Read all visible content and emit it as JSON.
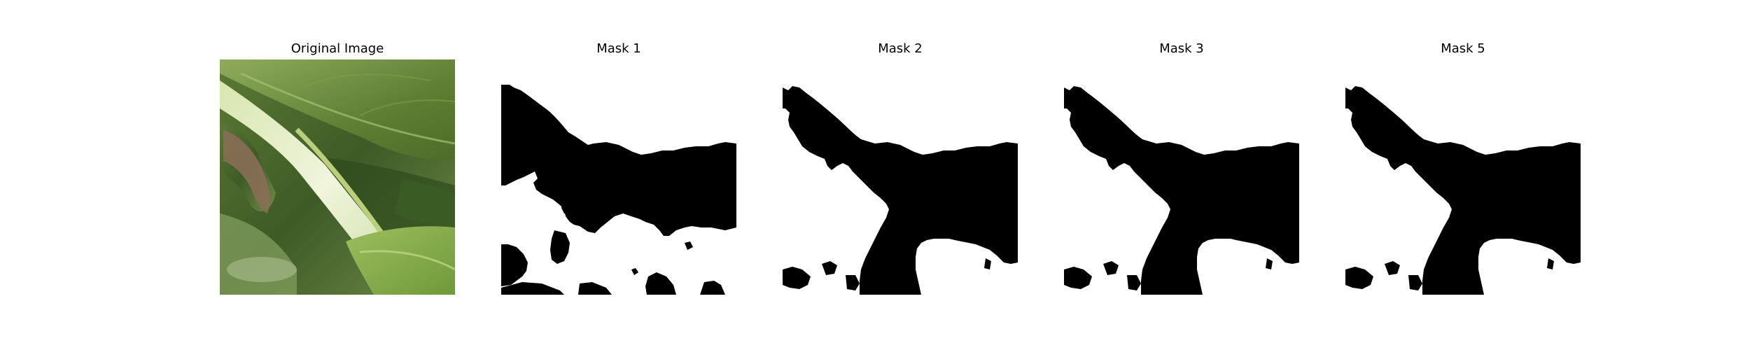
{
  "figure": {
    "panels": [
      {
        "title": "Original Image",
        "kind": "photo"
      },
      {
        "title": "Mask 1",
        "kind": "binary-mask"
      },
      {
        "title": "Mask 2",
        "kind": "binary-mask"
      },
      {
        "title": "Mask 3",
        "kind": "binary-mask"
      },
      {
        "title": "Mask 5",
        "kind": "binary-mask"
      }
    ]
  },
  "colors": {
    "mask_foreground": "#000000",
    "mask_background": "#ffffff",
    "leaf_dark": "#3f5a22",
    "leaf_mid": "#6f8f3c",
    "leaf_light": "#a9c07a",
    "stem": "#e2ecc6",
    "dead_leaf": "#8a6e55"
  }
}
